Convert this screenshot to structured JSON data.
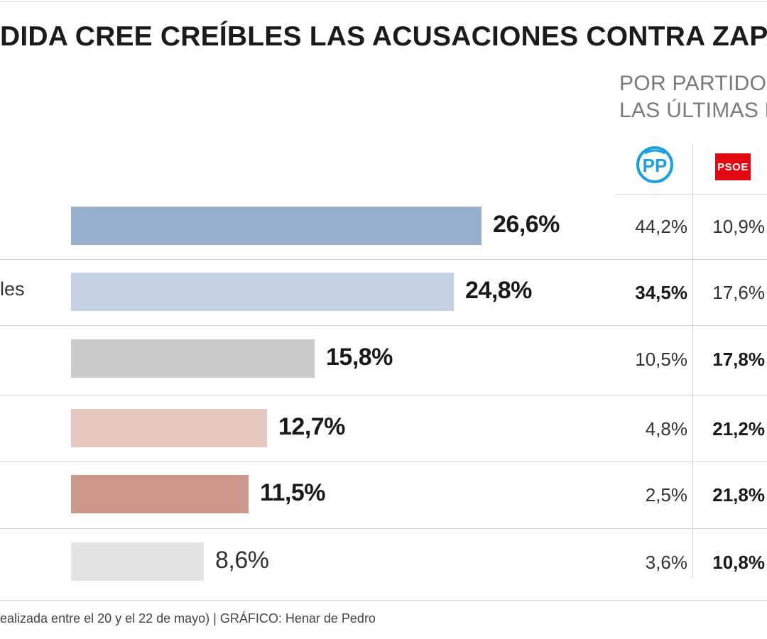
{
  "title": "DIDA CREE CREÍBLES LAS ACUSACIONES CONTRA ZAPAT",
  "subtitle": {
    "line1": "POR PARTIDO",
    "line2": "LAS ÚLTIMAS E"
  },
  "parties": [
    {
      "name": "PP",
      "logo": "pp-logo-icon",
      "color": "#1aa0dc"
    },
    {
      "name": "PSOE",
      "logo": "psoe-logo-icon",
      "color": "#e30613"
    }
  ],
  "chart_data": {
    "type": "bar",
    "orientation": "horizontal",
    "categories": [
      "",
      "les",
      "",
      "",
      "",
      ""
    ],
    "values": [
      26.6,
      24.8,
      15.8,
      12.7,
      11.5,
      8.6
    ],
    "value_labels": [
      "26,6%",
      "24,8%",
      "15,8%",
      "12,7%",
      "11,5%",
      "8,6%"
    ],
    "bar_colors": [
      "#98aecd",
      "#c3d1e3",
      "#cacaca",
      "#e6c7bf",
      "#cc988a",
      "#e4e4e4"
    ],
    "label_bold": [
      true,
      true,
      true,
      true,
      true,
      false
    ],
    "xlim": [
      0,
      26.6
    ],
    "table": {
      "columns": [
        "PP",
        "PSOE"
      ],
      "rows": [
        [
          {
            "text": "44,2%",
            "bold": false
          },
          {
            "text": "10,9%",
            "bold": false
          }
        ],
        [
          {
            "text": "34,5%",
            "bold": true
          },
          {
            "text": "17,6%",
            "bold": false
          }
        ],
        [
          {
            "text": "10,5%",
            "bold": false
          },
          {
            "text": "17,8%",
            "bold": true
          }
        ],
        [
          {
            "text": "4,8%",
            "bold": false
          },
          {
            "text": "21,2%",
            "bold": true
          }
        ],
        [
          {
            "text": "2,5%",
            "bold": false
          },
          {
            "text": "21,8%",
            "bold": true
          }
        ],
        [
          {
            "text": "3,6%",
            "bold": false
          },
          {
            "text": "10,8%",
            "bold": true
          }
        ]
      ]
    }
  },
  "footer": "ealizada entre el 20 y el 22 de mayo)  |  GRÁFICO: Henar de Pedro"
}
